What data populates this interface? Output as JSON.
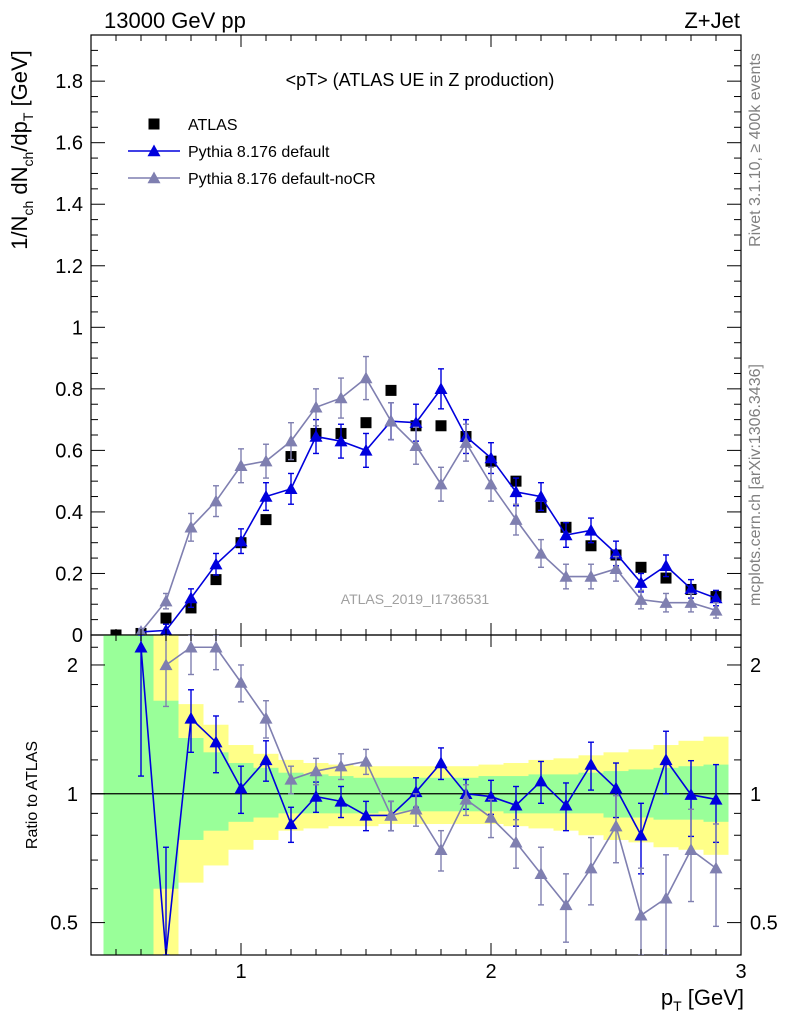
{
  "header": {
    "energy": "13000 GeV pp",
    "process": "Z+Jet"
  },
  "side_labels": {
    "rivet": "Rivet 3.1.10, ≥ 400k events",
    "mcplots": "mcplots.cern.ch [arXiv:1306.3436]"
  },
  "main_panel": {
    "title": "<pT> (ATLAS UE in Z production)",
    "ylabel": "1/N_ch dN_ch/dp_T [GeV]",
    "analysis_id": "ATLAS_2019_I1736531",
    "yticks": [
      0,
      0.2,
      0.4,
      0.6,
      0.8,
      1,
      1.2,
      1.4,
      1.6,
      1.8
    ],
    "yticklabels": [
      "0",
      "0.2",
      "0.4",
      "0.6",
      "0.8",
      "1",
      "1.2",
      "1.4",
      "1.6",
      "1.8"
    ]
  },
  "ratio_panel": {
    "ylabel": "Ratio to ATLAS",
    "yticklabels_left": [
      "0.5",
      "1",
      "2"
    ],
    "yticklabels_right": [
      "0.5",
      "1",
      "2"
    ]
  },
  "x_axis": {
    "label": "p_T [GeV]",
    "ticklabels": [
      "1",
      "2",
      "3"
    ]
  },
  "legend": [
    {
      "name": "ATLAS",
      "marker": "square",
      "color": "#000000"
    },
    {
      "name": "Pythia 8.176 default",
      "marker": "triangle",
      "color": "#0000dd"
    },
    {
      "name": "Pythia 8.176 default-noCR",
      "marker": "triangle",
      "color": "#7f7fb0"
    }
  ],
  "chart_data": {
    "type": "line",
    "title": "<pT> (ATLAS UE in Z production)",
    "xlabel": "p_T [GeV]",
    "ylabel": "1/N_ch dN_ch/dp_T [GeV]",
    "xlim": [
      0.4,
      3.0
    ],
    "ylim": [
      0,
      1.95
    ],
    "ratio_ylim": [
      0.42,
      2.35
    ],
    "ratio_scale": "log",
    "x": [
      0.5,
      0.6,
      0.7,
      0.8,
      0.9,
      1.0,
      1.1,
      1.2,
      1.3,
      1.4,
      1.5,
      1.6,
      1.7,
      1.8,
      1.9,
      2.0,
      2.1,
      2.2,
      2.3,
      2.4,
      2.5,
      2.6,
      2.7,
      2.8,
      2.9
    ],
    "series": [
      {
        "name": "ATLAS",
        "color": "#000000",
        "values": [
          0.0,
          0.005,
          0.055,
          0.088,
          0.18,
          0.3,
          0.375,
          0.58,
          0.655,
          0.655,
          0.69,
          0.795,
          0.68,
          0.68,
          0.645,
          0.565,
          0.5,
          0.415,
          0.35,
          0.29,
          0.26,
          0.22,
          0.185,
          0.148,
          0.125
        ],
        "errors": [
          0.003,
          0.003,
          0.005,
          0.005,
          0.008,
          0.01,
          0.01,
          0.015,
          0.015,
          0.015,
          0.015,
          0.015,
          0.015,
          0.015,
          0.015,
          0.015,
          0.015,
          0.015,
          0.015,
          0.012,
          0.01,
          0.01,
          0.01,
          0.008,
          0.008
        ]
      },
      {
        "name": "Pythia 8.176 default",
        "color": "#0000dd",
        "values": [
          null,
          0.01,
          0.015,
          0.12,
          0.23,
          0.305,
          0.45,
          0.475,
          0.645,
          0.63,
          0.6,
          0.695,
          0.69,
          0.8,
          0.645,
          0.575,
          0.465,
          0.45,
          0.325,
          0.34,
          0.265,
          0.17,
          0.225,
          0.15,
          0.12
        ],
        "errors": [
          null,
          0.01,
          0.02,
          0.03,
          0.035,
          0.04,
          0.045,
          0.05,
          0.055,
          0.055,
          0.055,
          0.06,
          0.06,
          0.065,
          0.055,
          0.05,
          0.045,
          0.045,
          0.04,
          0.04,
          0.04,
          0.03,
          0.035,
          0.03,
          0.025
        ],
        "ratio": [
          null,
          2.2,
          0.35,
          1.5,
          1.32,
          1.03,
          1.2,
          0.85,
          0.985,
          0.96,
          0.89,
          0.89,
          1.01,
          1.18,
          1.0,
          0.985,
          0.94,
          1.07,
          0.94,
          1.17,
          1.03,
          0.8,
          1.2,
          0.995,
          0.97
        ],
        "ratio_errors": [
          null,
          1.1,
          0.4,
          0.25,
          0.2,
          0.13,
          0.13,
          0.08,
          0.08,
          0.08,
          0.07,
          0.07,
          0.08,
          0.1,
          0.08,
          0.09,
          0.1,
          0.12,
          0.12,
          0.15,
          0.15,
          0.15,
          0.2,
          0.2,
          0.2
        ]
      },
      {
        "name": "Pythia 8.176 default-noCR",
        "color": "#7f7fb0",
        "values": [
          null,
          0.01,
          0.11,
          0.35,
          0.435,
          0.55,
          0.565,
          0.63,
          0.74,
          0.77,
          0.835,
          0.695,
          0.615,
          0.49,
          0.625,
          0.49,
          0.375,
          0.265,
          0.19,
          0.19,
          0.215,
          0.115,
          0.105,
          0.105,
          0.08
        ],
        "errors": [
          null,
          0.01,
          0.025,
          0.045,
          0.05,
          0.055,
          0.055,
          0.06,
          0.06,
          0.065,
          0.07,
          0.06,
          0.06,
          0.055,
          0.06,
          0.055,
          0.05,
          0.045,
          0.04,
          0.04,
          0.04,
          0.03,
          0.03,
          0.03,
          0.025
        ],
        "ratio": [
          null,
          null,
          2.0,
          2.2,
          2.2,
          1.82,
          1.5,
          1.08,
          1.13,
          1.16,
          1.19,
          0.89,
          0.92,
          0.74,
          0.97,
          0.88,
          0.77,
          0.65,
          0.55,
          0.67,
          0.84,
          0.52,
          0.57,
          0.74,
          0.67
        ],
        "ratio_errors": [
          null,
          null,
          0.4,
          0.3,
          0.25,
          0.18,
          0.15,
          0.08,
          0.08,
          0.08,
          0.08,
          0.07,
          0.08,
          0.08,
          0.08,
          0.09,
          0.1,
          0.1,
          0.1,
          0.12,
          0.15,
          0.15,
          0.15,
          0.18,
          0.18
        ]
      }
    ],
    "bands": {
      "bin_edges": [
        0.45,
        0.55,
        0.65,
        0.75,
        0.85,
        0.95,
        1.05,
        1.15,
        1.25,
        1.35,
        1.45,
        1.55,
        1.65,
        1.75,
        1.85,
        1.95,
        2.05,
        2.15,
        2.25,
        2.35,
        2.45,
        2.55,
        2.65,
        2.75,
        2.85,
        2.95
      ],
      "green_lo": [
        0.42,
        0.42,
        0.6,
        0.78,
        0.82,
        0.86,
        0.88,
        0.9,
        0.9,
        0.9,
        0.9,
        0.91,
        0.91,
        0.91,
        0.91,
        0.91,
        0.9,
        0.9,
        0.9,
        0.9,
        0.88,
        0.88,
        0.87,
        0.87,
        0.86
      ],
      "green_hi": [
        2.35,
        2.35,
        1.65,
        1.35,
        1.25,
        1.18,
        1.15,
        1.12,
        1.11,
        1.1,
        1.09,
        1.09,
        1.09,
        1.09,
        1.09,
        1.1,
        1.1,
        1.11,
        1.11,
        1.12,
        1.13,
        1.14,
        1.15,
        1.16,
        1.17
      ],
      "yellow_lo": [
        0.42,
        0.42,
        0.42,
        0.62,
        0.68,
        0.74,
        0.78,
        0.82,
        0.83,
        0.84,
        0.84,
        0.85,
        0.85,
        0.85,
        0.85,
        0.85,
        0.84,
        0.83,
        0.82,
        0.8,
        0.78,
        0.77,
        0.75,
        0.74,
        0.72
      ],
      "yellow_hi": [
        2.35,
        2.35,
        2.35,
        1.62,
        1.45,
        1.3,
        1.24,
        1.2,
        1.18,
        1.17,
        1.16,
        1.16,
        1.16,
        1.16,
        1.16,
        1.17,
        1.18,
        1.2,
        1.21,
        1.23,
        1.25,
        1.27,
        1.3,
        1.33,
        1.36
      ]
    }
  }
}
